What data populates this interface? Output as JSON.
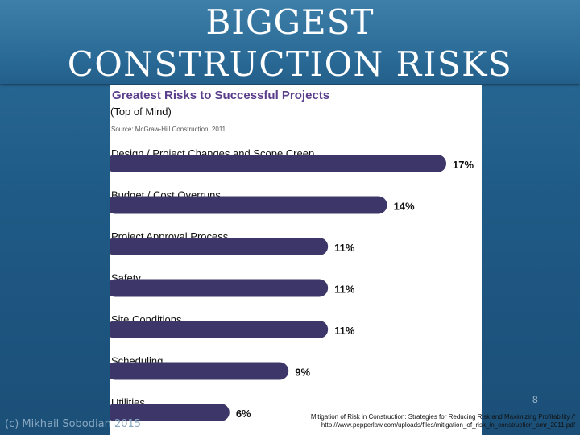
{
  "slide": {
    "title_line1": "BIGGEST",
    "title_line2": "CONSTRUCTION RISKS",
    "footer_left": "(c) Mikhail Sobodian 2015",
    "footer_right_line1": "Mitigation of Risk in Construction: Strategies for Reducing Risk and Maximizing Profitability //",
    "footer_right_line2": "http://www.pepperlaw.com/uploads/files/mitigation_of_risk_in_construction_smr_2011.pdf",
    "page_number": "8"
  },
  "colors": {
    "background": "#1f5f8c",
    "title": "#ffffff",
    "chart_title": "#5a3e8c",
    "bar": "#3c3768",
    "label": "#111111"
  },
  "chart_data": {
    "type": "bar",
    "orientation": "horizontal",
    "title": "Greatest Risks to Successful Projects",
    "subtitle": "(Top of Mind)",
    "source": "Source: McGraw-Hill Construction, 2011",
    "categories": [
      "Design / Project Changes and Scope Creep",
      "Budget / Cost Overruns",
      "Project Approval Process",
      "Safety",
      "Site Conditions",
      "Scheduling",
      "Utilities"
    ],
    "values": [
      17,
      14,
      11,
      11,
      11,
      9,
      6
    ],
    "value_labels": [
      "17%",
      "14%",
      "11%",
      "11%",
      "11%",
      "9%",
      "6%"
    ],
    "unit": "%",
    "xlim": [
      0,
      17
    ],
    "grid": false,
    "legend": "none"
  }
}
